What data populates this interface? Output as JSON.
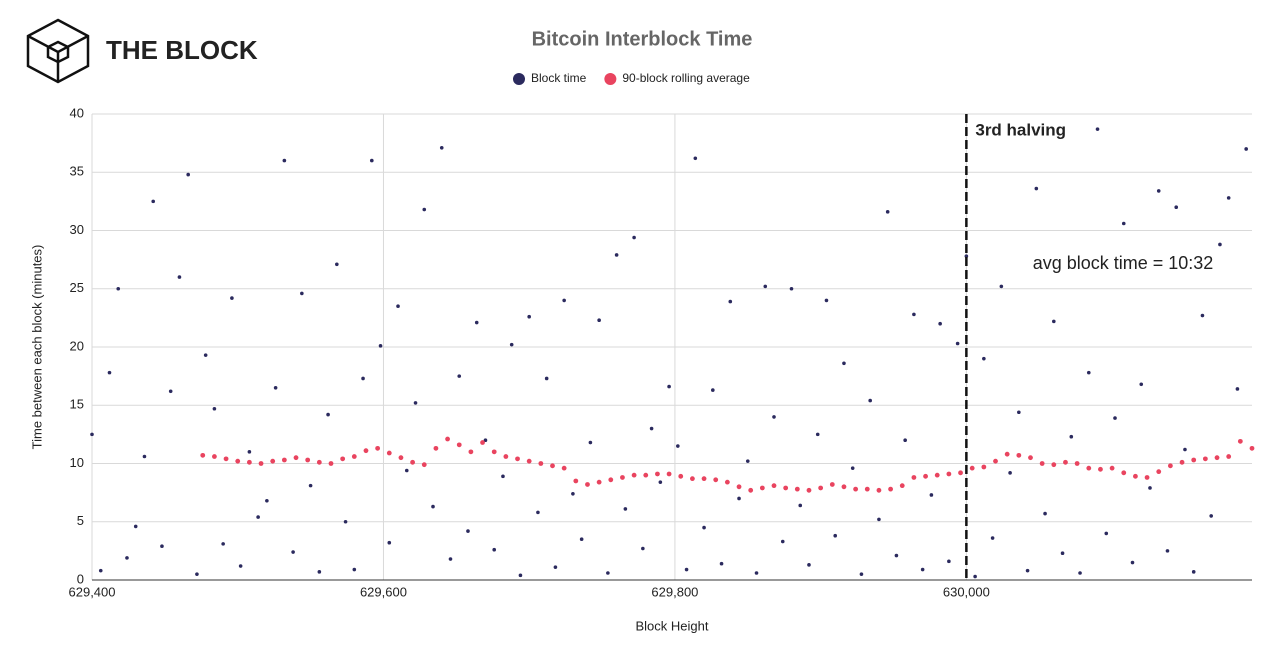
{
  "brand": "THE BLOCK",
  "chart_data": {
    "type": "scatter",
    "title": "Bitcoin Interblock Time",
    "x_label": "Block Height",
    "y_label": "Time between each block (minutes)",
    "xlim": [
      629400,
      630196
    ],
    "ylim": [
      0,
      40
    ],
    "xticks": [
      {
        "value": 629400,
        "label": "629,400"
      },
      {
        "value": 629600,
        "label": "629,600"
      },
      {
        "value": 629800,
        "label": "629,800"
      },
      {
        "value": 630000,
        "label": "630,000"
      }
    ],
    "yticks": [
      0,
      5,
      10,
      15,
      20,
      25,
      30,
      35,
      40
    ],
    "grid": true,
    "legend": "top",
    "annotations": [
      {
        "x": 630000,
        "label": "3rd halving"
      },
      {
        "label": "avg block time = 10:32"
      }
    ],
    "series": [
      {
        "name": "Block time",
        "color": "#2b2a5e",
        "x": [
          629400,
          629406,
          629412,
          629418,
          629424,
          629430,
          629436,
          629442,
          629448,
          629454,
          629460,
          629466,
          629472,
          629478,
          629484,
          629490,
          629496,
          629502,
          629508,
          629514,
          629520,
          629526,
          629532,
          629538,
          629544,
          629550,
          629556,
          629562,
          629568,
          629574,
          629580,
          629586,
          629592,
          629598,
          629604,
          629610,
          629616,
          629622,
          629628,
          629634,
          629640,
          629646,
          629652,
          629658,
          629664,
          629670,
          629676,
          629682,
          629688,
          629694,
          629700,
          629706,
          629712,
          629718,
          629724,
          629730,
          629736,
          629742,
          629748,
          629754,
          629760,
          629766,
          629772,
          629778,
          629784,
          629790,
          629796,
          629802,
          629808,
          629814,
          629820,
          629826,
          629832,
          629838,
          629844,
          629850,
          629856,
          629862,
          629868,
          629874,
          629880,
          629886,
          629892,
          629898,
          629904,
          629910,
          629916,
          629922,
          629928,
          629934,
          629940,
          629946,
          629952,
          629958,
          629964,
          629970,
          629976,
          629982,
          629988,
          629994,
          630000,
          630006,
          630012,
          630018,
          630024,
          630030,
          630036,
          630042,
          630048,
          630054,
          630060,
          630066,
          630072,
          630078,
          630084,
          630090,
          630096,
          630102,
          630108,
          630114,
          630120,
          630126,
          630132,
          630138,
          630144,
          630150,
          630156,
          630162,
          630168,
          630174,
          630180,
          630186,
          630192
        ],
        "values": [
          12.5,
          0.8,
          17.8,
          25.0,
          1.9,
          4.6,
          10.6,
          32.5,
          2.9,
          16.2,
          26.0,
          34.8,
          0.5,
          19.3,
          14.7,
          3.1,
          24.2,
          1.2,
          11.0,
          5.4,
          6.8,
          16.5,
          36.0,
          2.4,
          24.6,
          8.1,
          0.7,
          14.2,
          27.1,
          5.0,
          0.9,
          17.3,
          36.0,
          20.1,
          3.2,
          23.5,
          9.4,
          15.2,
          31.8,
          6.3,
          37.1,
          1.8,
          17.5,
          4.2,
          22.1,
          12.0,
          2.6,
          8.9,
          20.2,
          0.4,
          22.6,
          5.8,
          17.3,
          1.1,
          24.0,
          7.4,
          3.5,
          11.8,
          22.3,
          0.6,
          27.9,
          6.1,
          29.4,
          2.7,
          13.0,
          8.4,
          16.6,
          11.5,
          0.9,
          36.2,
          4.5,
          16.3,
          1.4,
          23.9,
          7.0,
          10.2,
          0.6,
          25.2,
          14.0,
          3.3,
          25.0,
          6.4,
          1.3,
          12.5,
          24.0,
          3.8,
          18.6,
          9.6,
          0.5,
          15.4,
          5.2,
          31.6,
          2.1,
          12.0,
          22.8,
          0.9,
          7.3,
          22.0,
          1.6,
          20.3,
          27.8,
          0.3,
          19.0,
          3.6,
          25.2,
          9.2,
          14.4,
          0.8,
          33.6,
          5.7,
          22.2,
          2.3,
          12.3,
          0.6,
          17.8,
          38.7,
          4.0,
          13.9,
          30.6,
          1.5,
          16.8,
          7.9,
          33.4,
          2.5,
          32.0,
          11.2,
          0.7,
          22.7,
          5.5,
          28.8,
          32.8,
          16.4,
          37.0
        ]
      },
      {
        "name": "90-block rolling average",
        "color": "#e9445f",
        "x": [
          629476,
          629484,
          629492,
          629500,
          629508,
          629516,
          629524,
          629532,
          629540,
          629548,
          629556,
          629564,
          629572,
          629580,
          629588,
          629596,
          629604,
          629612,
          629620,
          629628,
          629636,
          629644,
          629652,
          629660,
          629668,
          629676,
          629684,
          629692,
          629700,
          629708,
          629716,
          629724,
          629732,
          629740,
          629748,
          629756,
          629764,
          629772,
          629780,
          629788,
          629796,
          629804,
          629812,
          629820,
          629828,
          629836,
          629844,
          629852,
          629860,
          629868,
          629876,
          629884,
          629892,
          629900,
          629908,
          629916,
          629924,
          629932,
          629940,
          629948,
          629956,
          629964,
          629972,
          629980,
          629988,
          629996,
          630004,
          630012,
          630020,
          630028,
          630036,
          630044,
          630052,
          630060,
          630068,
          630076,
          630084,
          630092,
          630100,
          630108,
          630116,
          630124,
          630132,
          630140,
          630148,
          630156,
          630164,
          630172,
          630180,
          630188,
          630196
        ],
        "values": [
          10.7,
          10.6,
          10.4,
          10.2,
          10.1,
          10.0,
          10.2,
          10.3,
          10.5,
          10.3,
          10.1,
          10.0,
          10.4,
          10.6,
          11.1,
          11.3,
          10.9,
          10.5,
          10.1,
          9.9,
          11.3,
          12.1,
          11.6,
          11.0,
          11.8,
          11.0,
          10.6,
          10.4,
          10.2,
          10.0,
          9.8,
          9.6,
          8.5,
          8.2,
          8.4,
          8.6,
          8.8,
          9.0,
          9.0,
          9.1,
          9.1,
          8.9,
          8.7,
          8.7,
          8.6,
          8.4,
          8.0,
          7.7,
          7.9,
          8.1,
          7.9,
          7.8,
          7.7,
          7.9,
          8.2,
          8.0,
          7.8,
          7.8,
          7.7,
          7.8,
          8.1,
          8.8,
          8.9,
          9.0,
          9.1,
          9.2,
          9.6,
          9.7,
          10.2,
          10.8,
          10.7,
          10.5,
          10.0,
          9.9,
          10.1,
          10.0,
          9.6,
          9.5,
          9.6,
          9.2,
          8.9,
          8.8,
          9.3,
          9.8,
          10.1,
          10.3,
          10.4,
          10.5,
          10.6,
          11.9,
          11.3
        ]
      }
    ]
  }
}
